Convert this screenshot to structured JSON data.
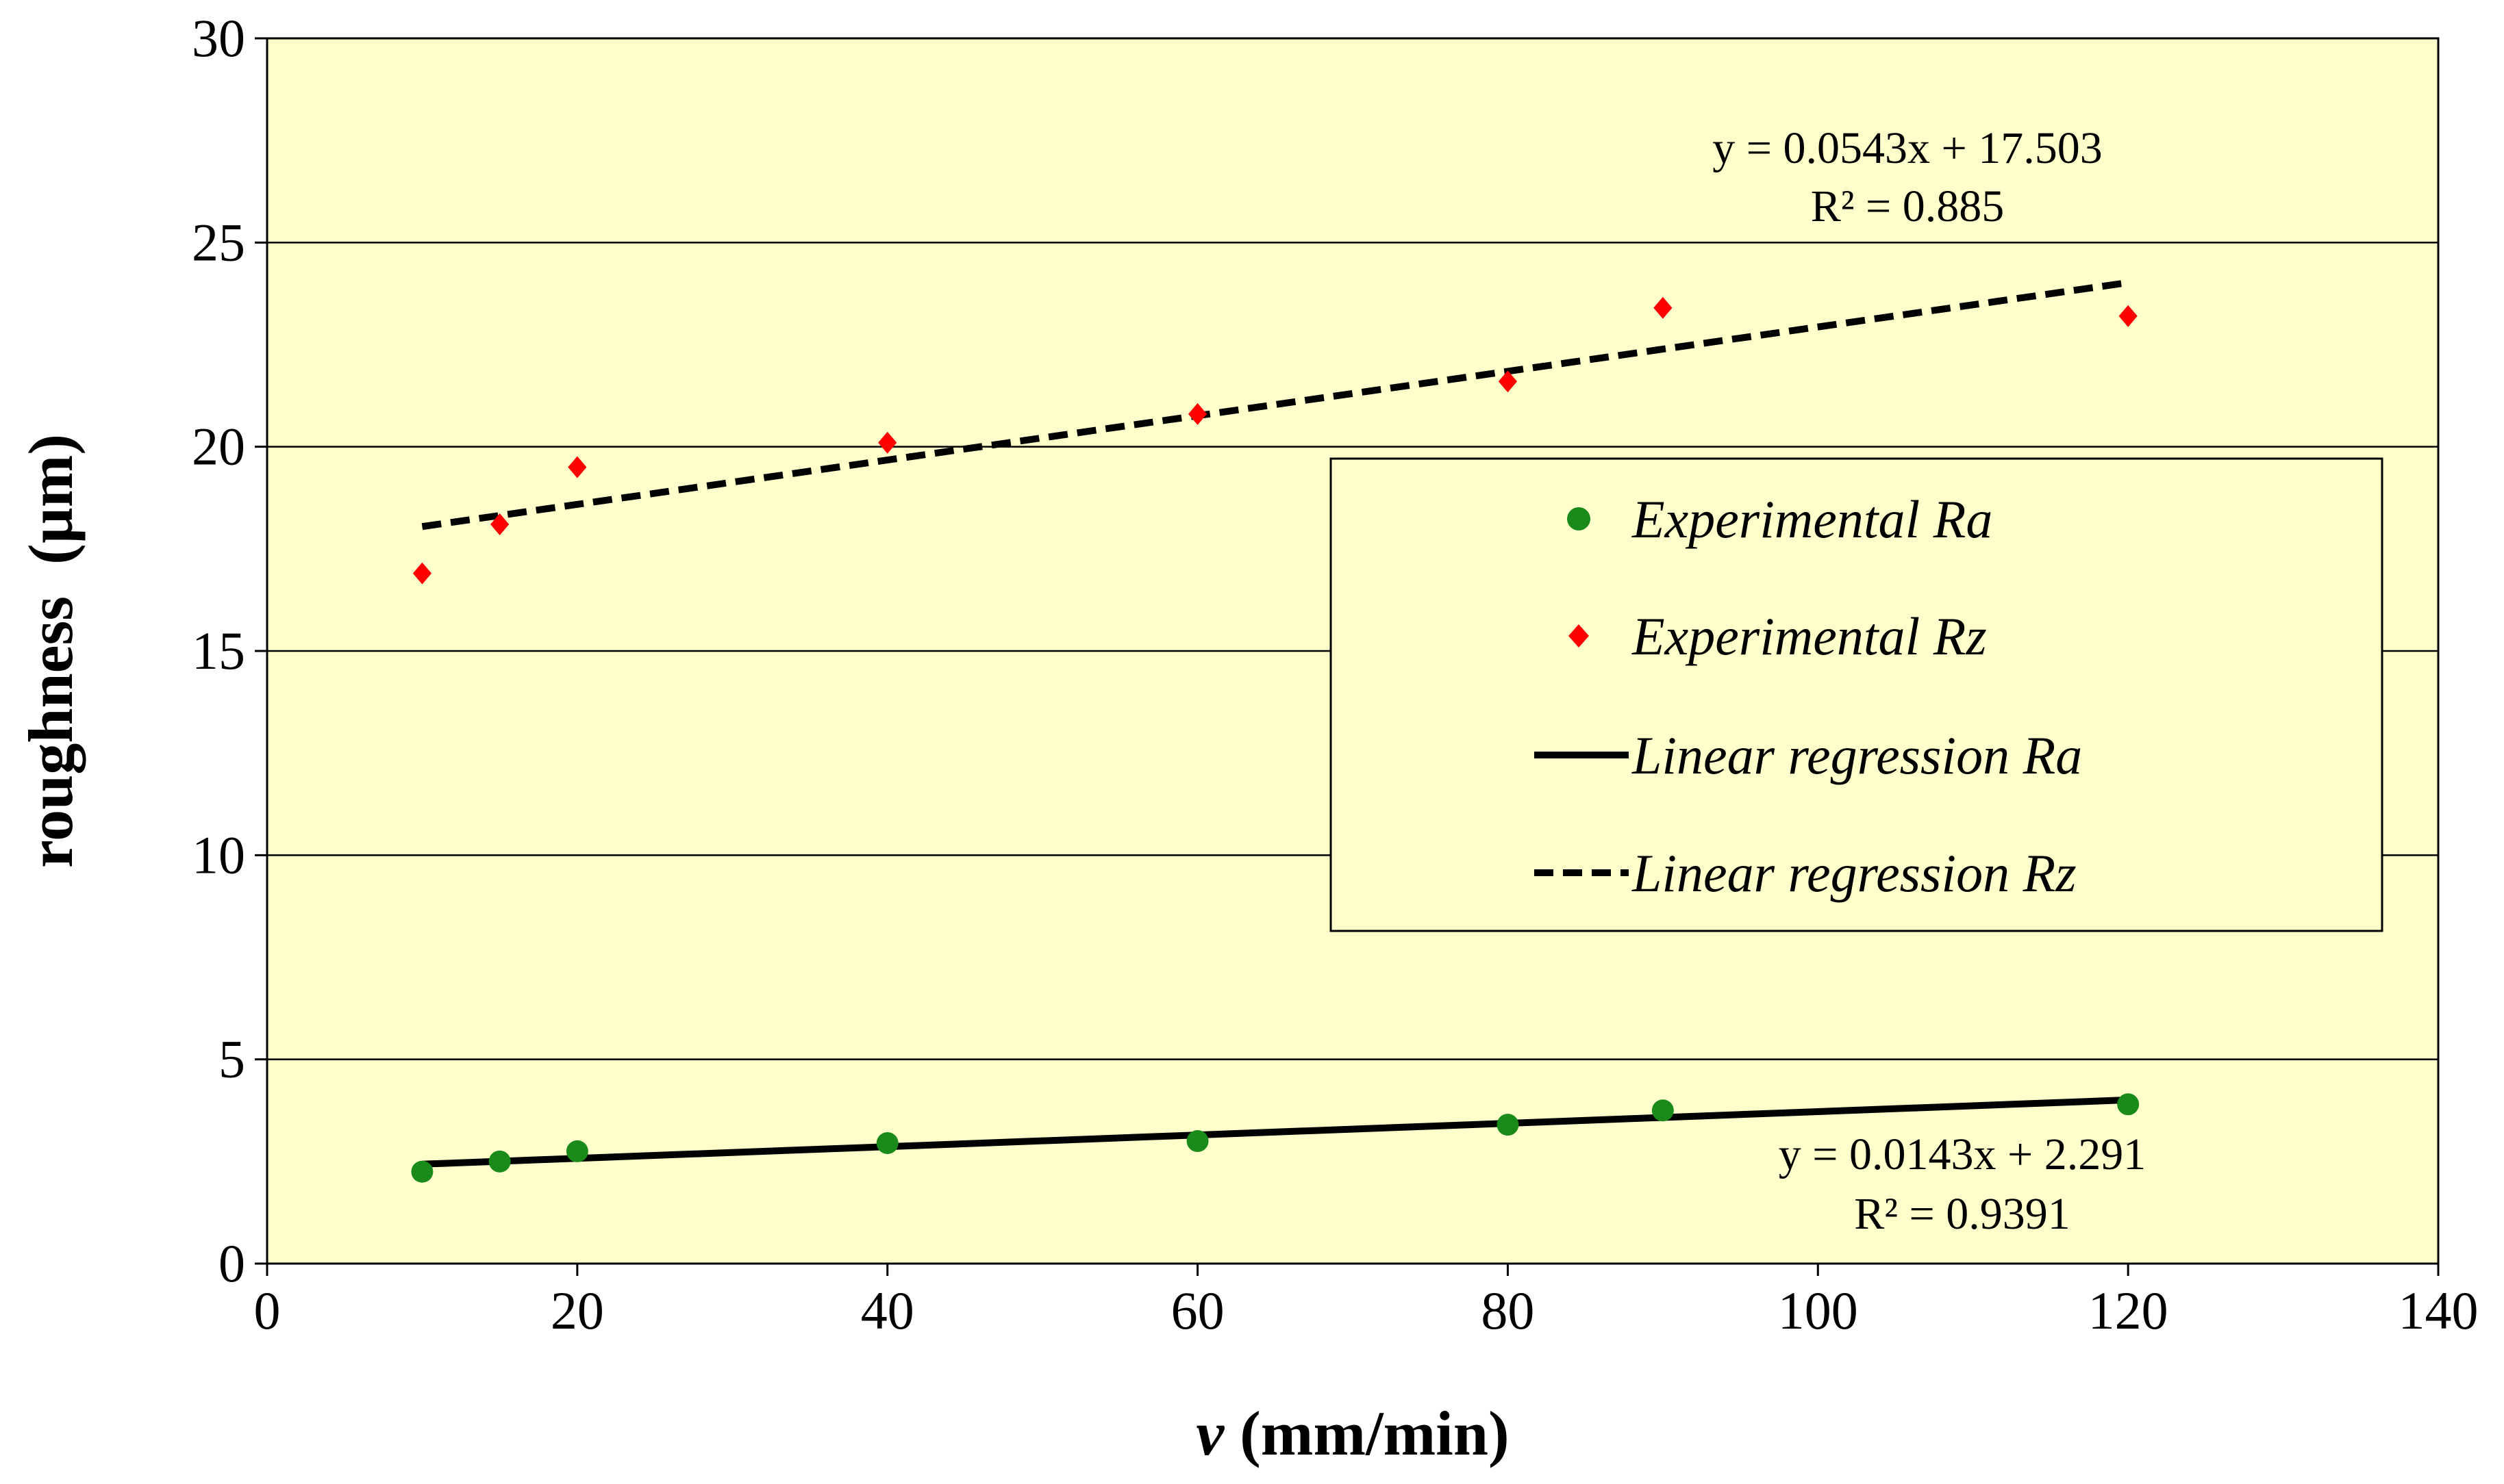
{
  "chart_data": {
    "type": "scatter",
    "title": "",
    "xlabel_var": "v",
    "xlabel_unit": " (mm/min)",
    "ylabel": "roughness  (µm)",
    "xlim": [
      0,
      140
    ],
    "ylim": [
      0,
      30
    ],
    "x_ticks": [
      0,
      20,
      40,
      60,
      80,
      100,
      120,
      140
    ],
    "y_ticks": [
      0,
      5,
      10,
      15,
      20,
      25,
      30
    ],
    "grid": "horizontal",
    "plot_background": "#ffffcc",
    "legend_position": "right-middle",
    "series": [
      {
        "name": "Experimental Ra",
        "kind": "scatter",
        "marker": "circle",
        "color": "#1a8a1a",
        "x": [
          10,
          15,
          20,
          40,
          60,
          80,
          90,
          120
        ],
        "y": [
          2.25,
          2.5,
          2.75,
          2.95,
          3.0,
          3.4,
          3.75,
          3.9
        ]
      },
      {
        "name": "Experimental Rz",
        "kind": "scatter",
        "marker": "diamond",
        "color": "#ff0000",
        "x": [
          10,
          15,
          20,
          40,
          60,
          80,
          90,
          120
        ],
        "y": [
          16.9,
          18.1,
          19.5,
          20.1,
          20.8,
          21.6,
          23.4,
          23.2
        ]
      },
      {
        "name": "Linear regression Ra",
        "kind": "line",
        "style": "solid",
        "color": "#000000",
        "slope": 0.0143,
        "intercept": 2.291,
        "x_range": [
          10,
          120
        ]
      },
      {
        "name": "Linear regression Rz",
        "kind": "line",
        "style": "dashed",
        "color": "#000000",
        "slope": 0.0543,
        "intercept": 17.503,
        "x_range": [
          10,
          120
        ]
      }
    ],
    "annotations": {
      "rz_equation": "y = 0.0543x + 17.503",
      "rz_r2": "R² = 0.885",
      "ra_equation": "y = 0.0143x + 2.291",
      "ra_r2": "R² = 0.9391"
    }
  }
}
